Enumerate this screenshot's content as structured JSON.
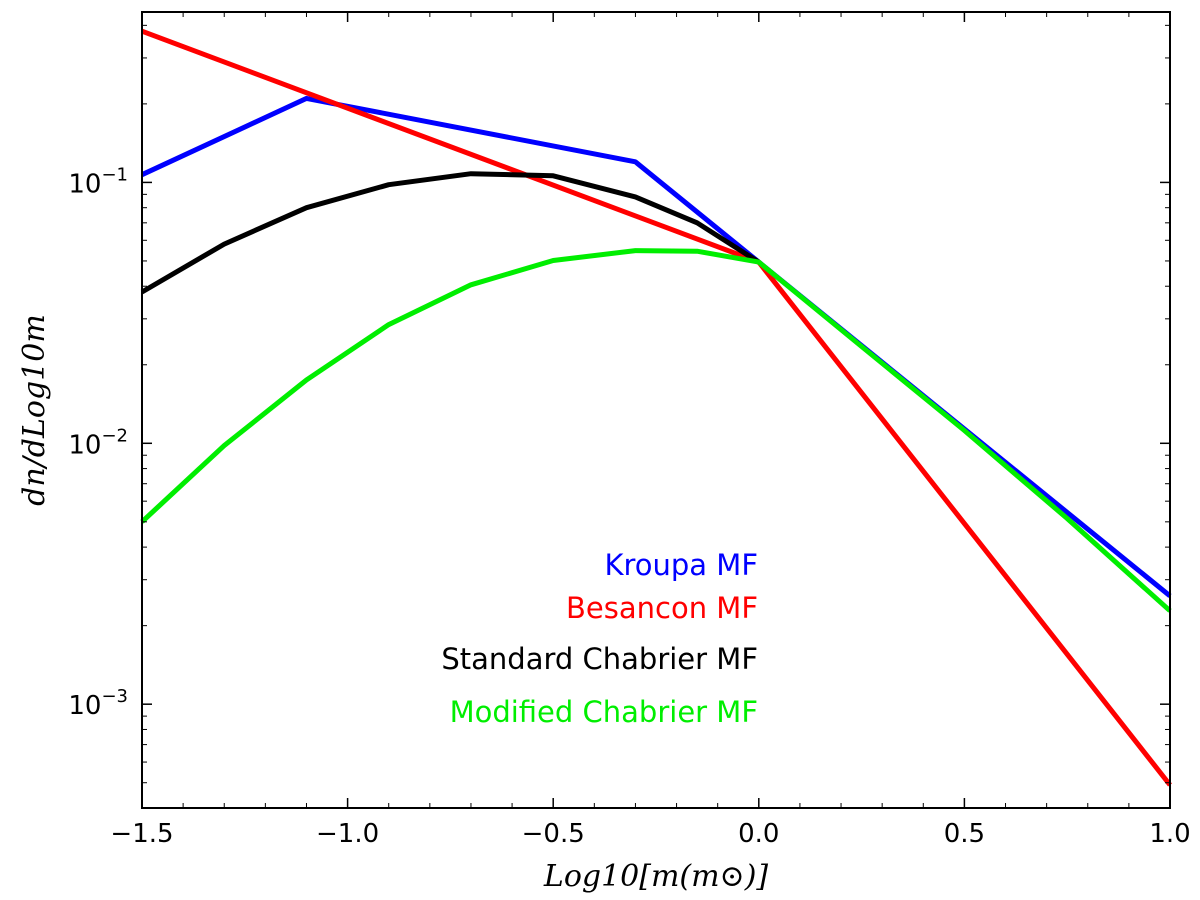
{
  "chart_data": {
    "type": "line",
    "xlabel": "Log10[m(m⊙)]",
    "ylabel": "dn/dLog10m",
    "xlim": [
      -1.5,
      1.0
    ],
    "ylim": [
      0.0004,
      0.45
    ],
    "yscale": "log",
    "grid": false,
    "x_ticks": [
      -1.5,
      -1.0,
      -0.5,
      0.0,
      0.5,
      1.0
    ],
    "x_tick_labels": [
      "−1.5",
      "−1.0",
      "−0.5",
      "0.0",
      "0.5",
      "1.0"
    ],
    "y_major_ticks": [
      0.001,
      0.01,
      0.1
    ],
    "y_tick_labels": [
      {
        "base": "10",
        "exp": "−3"
      },
      {
        "base": "10",
        "exp": "−2"
      },
      {
        "base": "10",
        "exp": "−1"
      }
    ],
    "legend_placement": "center-bottom",
    "series": [
      {
        "name": "Kroupa MF",
        "color": "#0000ff",
        "x": [
          -1.5,
          -1.1,
          -0.3,
          0.0,
          1.0
        ],
        "y": [
          0.107,
          0.21,
          0.12,
          0.0495,
          0.0026
        ]
      },
      {
        "name": "Besancon MF",
        "color": "#ff0000",
        "x": [
          -1.5,
          0.0,
          1.0
        ],
        "y": [
          0.38,
          0.0495,
          0.00049
        ]
      },
      {
        "name": "Standard Chabrier MF",
        "color": "#000000",
        "x": [
          -1.5,
          -1.3,
          -1.1,
          -0.9,
          -0.7,
          -0.5,
          -0.3,
          -0.15,
          0.0
        ],
        "y": [
          0.038,
          0.058,
          0.08,
          0.098,
          0.108,
          0.106,
          0.088,
          0.07,
          0.0495
        ]
      },
      {
        "name": "Modified Chabrier MF",
        "color": "#00ee00",
        "x": [
          -1.5,
          -1.3,
          -1.1,
          -0.9,
          -0.7,
          -0.5,
          -0.3,
          -0.15,
          0.0,
          0.25,
          0.5,
          0.75,
          1.0
        ],
        "y": [
          0.005,
          0.0098,
          0.0175,
          0.0285,
          0.0405,
          0.0502,
          0.0548,
          0.0545,
          0.0495,
          0.0235,
          0.0112,
          0.00515,
          0.00228
        ]
      }
    ]
  }
}
